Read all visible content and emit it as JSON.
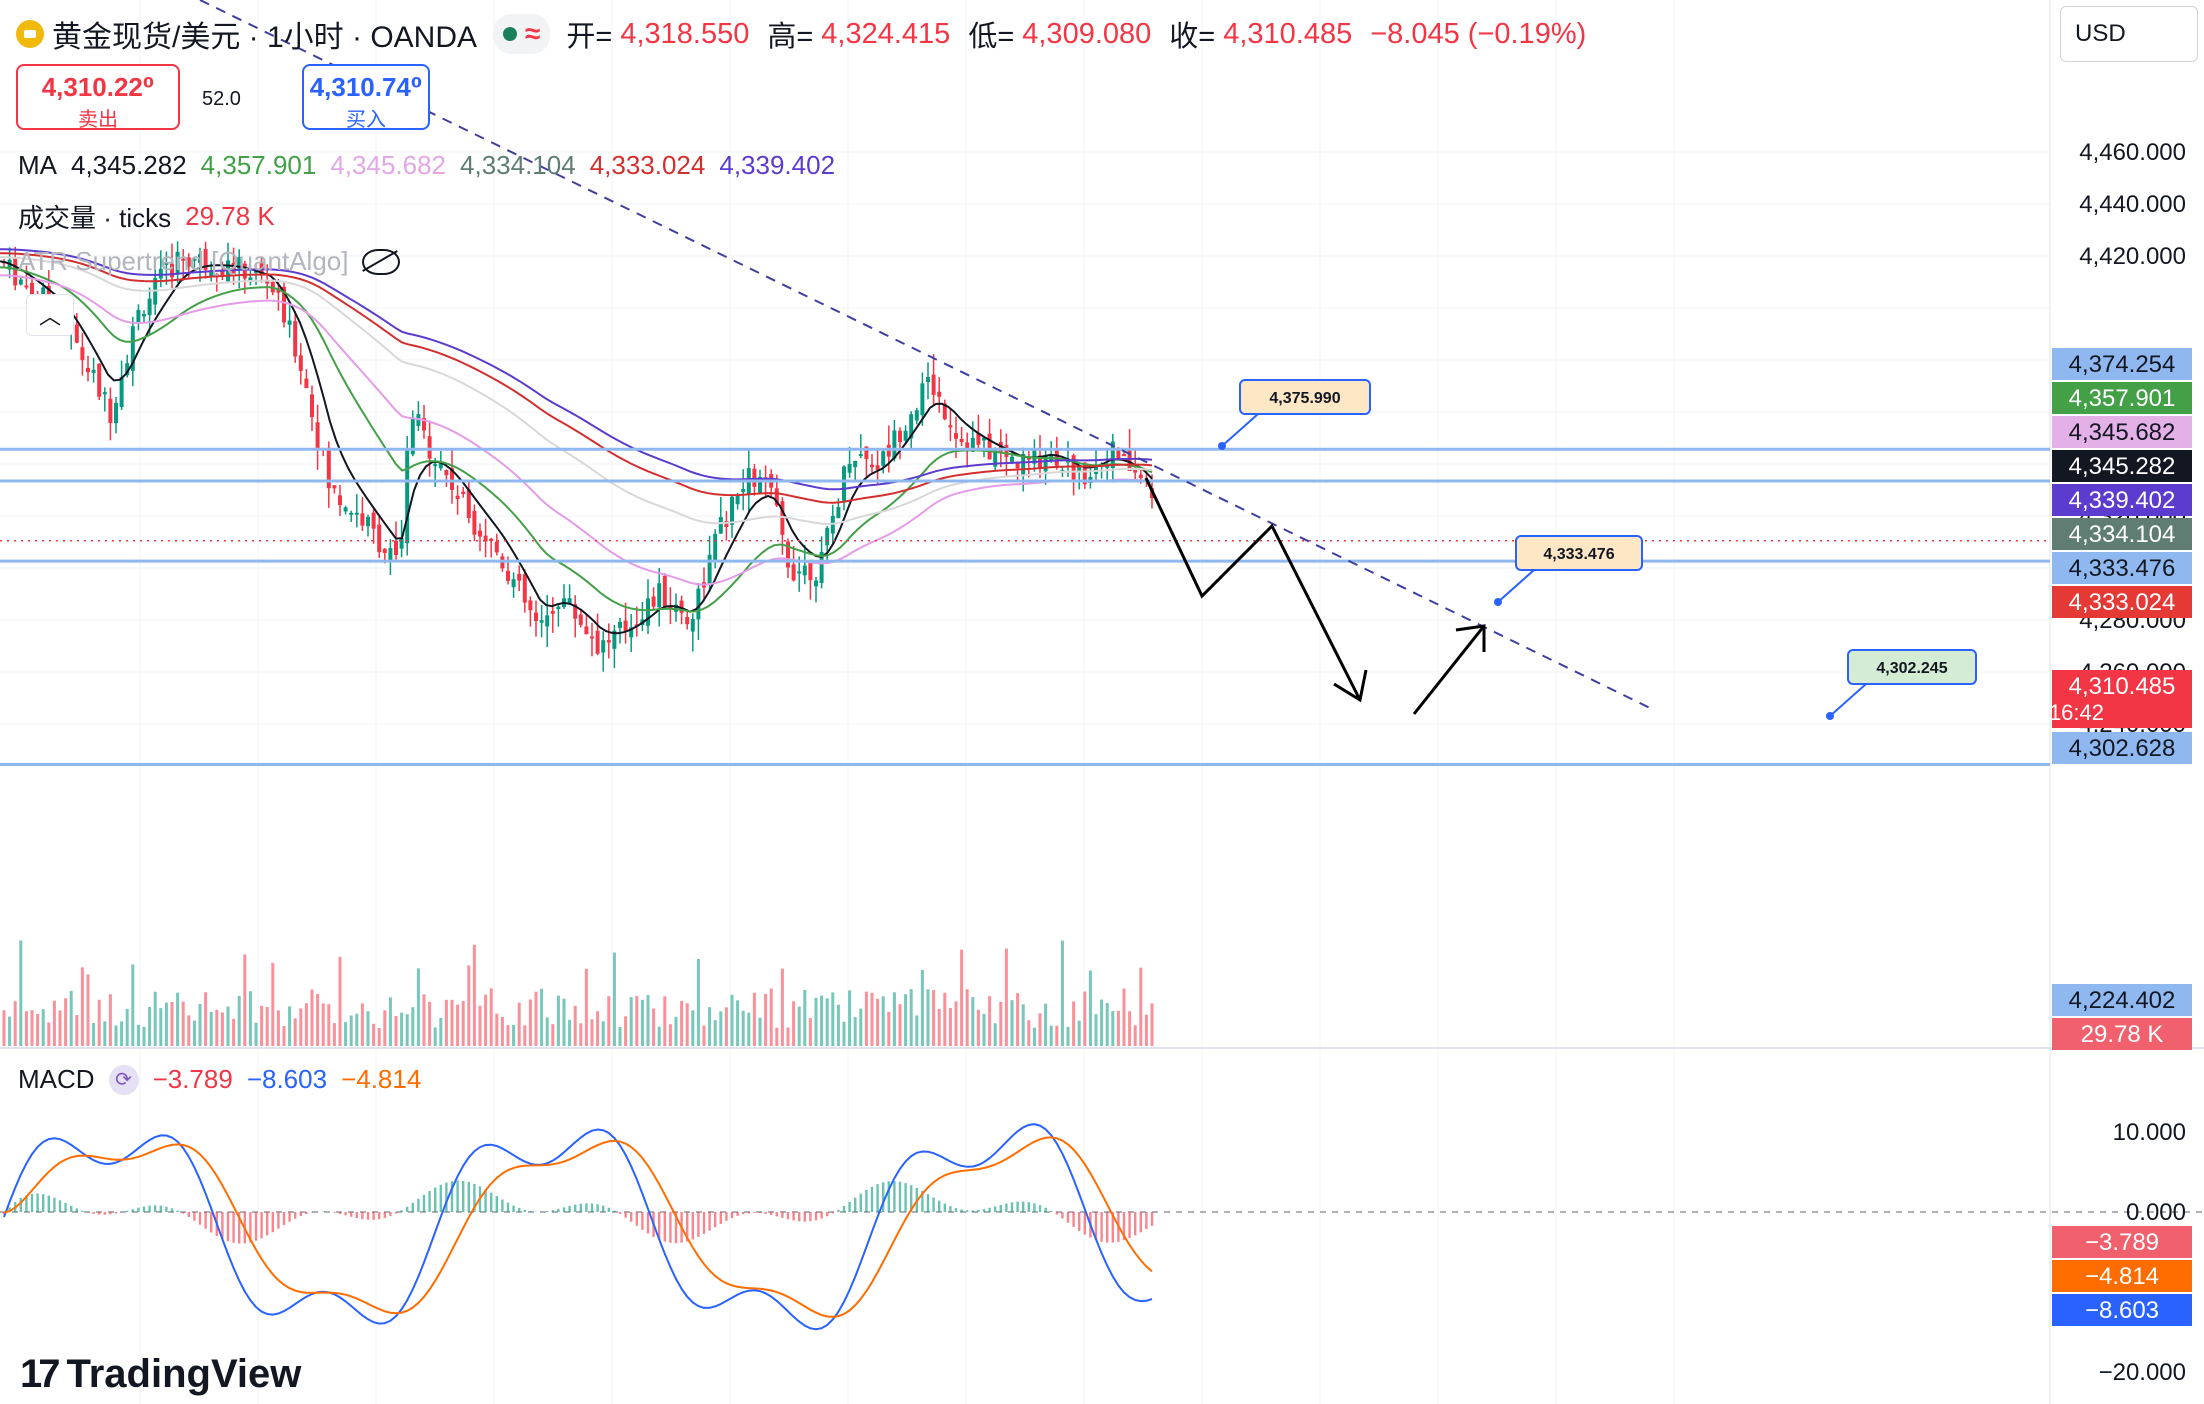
{
  "header": {
    "symbol_title": "黄金现货/美元 · 1小时 · OANDA",
    "market_status_icon": "market-open-dot",
    "wave_icon": "≈",
    "open_label": "开=",
    "open": "4,318.550",
    "high_label": "高=",
    "high": "4,324.415",
    "low_label": "低=",
    "low": "4,309.080",
    "close_label": "收=",
    "close": "4,310.485",
    "change": "−8.045 (−0.19%)"
  },
  "currency": "USD",
  "trade": {
    "sell_price": "4,310.22⁰",
    "sell_label": "卖出",
    "spread": "52.0",
    "buy_price": "4,310.74⁰",
    "buy_label": "买入"
  },
  "legend": {
    "ma_label": "MA",
    "ma_values": [
      "4,345.282",
      "4,357.901",
      "4,345.682",
      "4,334.104",
      "4,333.024",
      "4,339.402"
    ],
    "volume_label": "成交量 · ticks",
    "volume_value": "29.78 K",
    "supertrend_label": "ATR Supertrend [QuantAlgo]",
    "macd_label": "MACD",
    "macd_values": [
      "−3.789",
      "−8.603",
      "−4.814"
    ]
  },
  "colors": {
    "up": "#089981",
    "down": "#f23645",
    "ma": [
      "#131722",
      "#43a047",
      "#e59ce8",
      "#607d6a",
      "#d32f2f",
      "#5c3bcf"
    ],
    "hline": "#90b8f0",
    "trendline": "#3f3f9e",
    "macd_line": "#2962ff",
    "signal_line": "#ff6d00"
  },
  "price_axis": {
    "ticks": [
      "4,460.000",
      "4,440.000",
      "4,420.000",
      "4,320.000",
      "4,280.000",
      "4,260.000",
      "4,240.000"
    ],
    "min": 4208,
    "max": 4470
  },
  "price_badges": [
    {
      "text": "4,374.254",
      "bg": "#90b8f0",
      "fg": "#131722"
    },
    {
      "text": "4,357.901",
      "bg": "#43a047",
      "fg": "#ffffff"
    },
    {
      "text": "4,345.682",
      "bg": "#e3b0e8",
      "fg": "#131722"
    },
    {
      "text": "4,345.282",
      "bg": "#131722",
      "fg": "#ffffff"
    },
    {
      "text": "4,339.402",
      "bg": "#5c3bcf",
      "fg": "#ffffff"
    },
    {
      "text": "4,334.104",
      "bg": "#5f7d72",
      "fg": "#ffffff"
    },
    {
      "text": "4,333.476",
      "bg": "#90b8f0",
      "fg": "#131722"
    },
    {
      "text": "4,333.024",
      "bg": "#e53935",
      "fg": "#ffffff"
    },
    {
      "text": "4,310.485",
      "bg": "#f23645",
      "fg": "#ffffff",
      "sub": "16:42"
    },
    {
      "text": "4,302.628",
      "bg": "#90b8f0",
      "fg": "#131722"
    },
    {
      "text": "4,224.402",
      "bg": "#90b8f0",
      "fg": "#131722"
    },
    {
      "text": "29.78 K",
      "bg": "#f0616d",
      "fg": "#ffffff"
    }
  ],
  "horizontal_levels": [
    4345.682,
    4333.476,
    4302.628,
    4224.402
  ],
  "callouts": [
    "4,375.990",
    "4,333.476",
    "4,302.245"
  ],
  "macd_axis": {
    "ticks": [
      "10.000",
      "0.000",
      "−20.000"
    ],
    "badges": [
      {
        "text": "−3.789",
        "bg": "#f0616d",
        "fg": "#ffffff"
      },
      {
        "text": "−4.814",
        "bg": "#ff6d00",
        "fg": "#ffffff"
      },
      {
        "text": "−8.603",
        "bg": "#2962ff",
        "fg": "#ffffff"
      }
    ]
  },
  "watermark": "TradingView"
}
